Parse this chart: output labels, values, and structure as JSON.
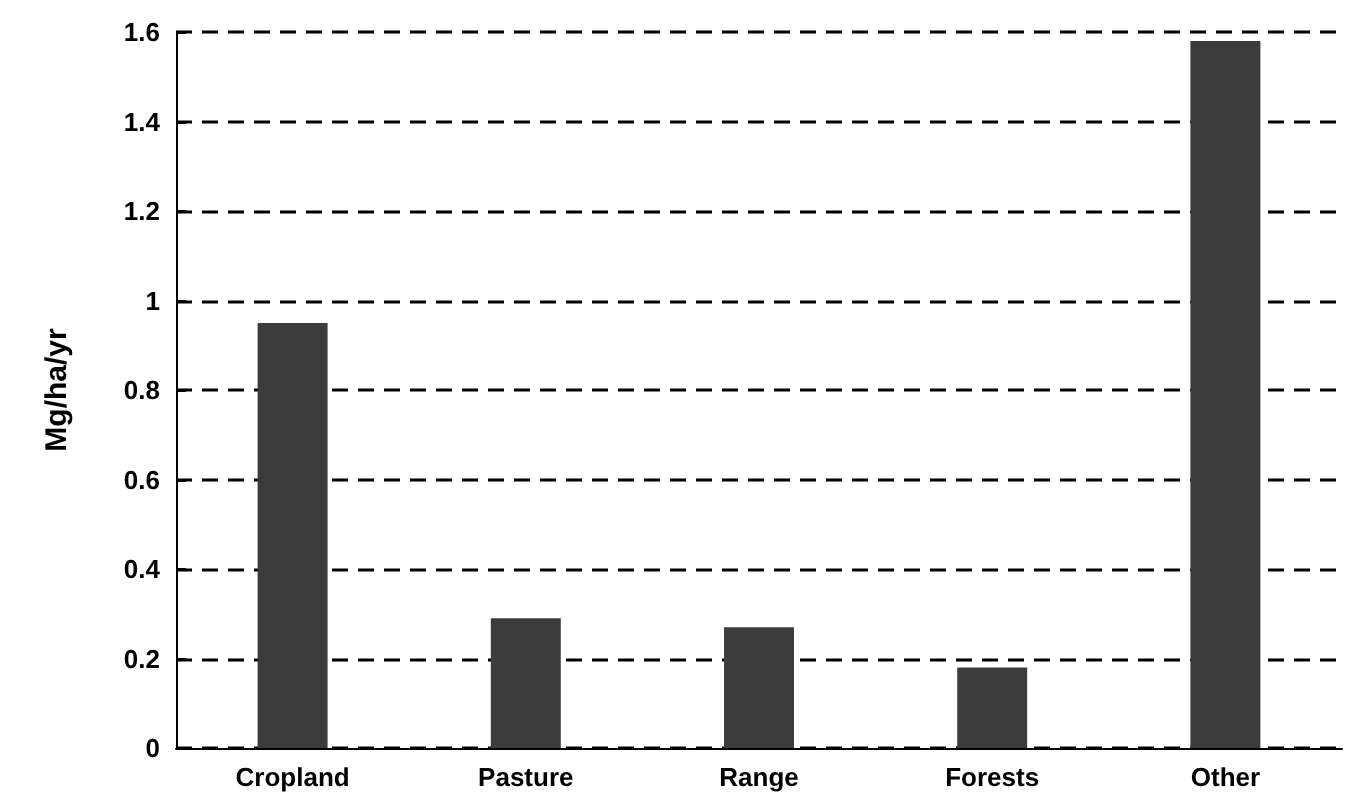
{
  "chart_data": {
    "type": "bar",
    "ylabel": "Mg/ha/yr",
    "categories": [
      "Cropland",
      "Pasture",
      "Range",
      "Forests",
      "Other"
    ],
    "values": [
      0.95,
      0.29,
      0.27,
      0.18,
      1.58
    ],
    "color": "#3c3c3c",
    "ylim": [
      0,
      1.6
    ],
    "yticks": [
      0,
      0.2,
      0.4,
      0.6,
      0.8,
      1,
      1.2,
      1.4,
      1.6
    ],
    "grid": "y"
  }
}
